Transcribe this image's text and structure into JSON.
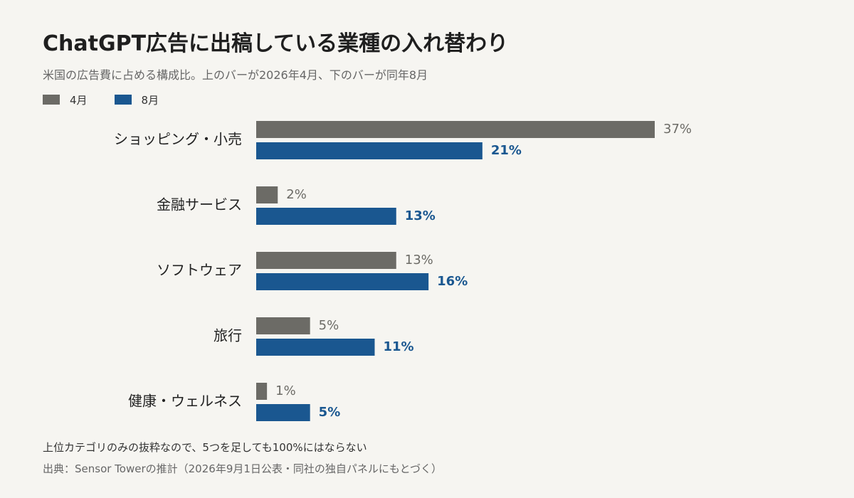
{
  "header": {
    "title": "ChatGPT広告に出稿している業種の入れ替わり",
    "subtitle": "米国の広告費に占める構成比。上のバーが2026年4月、下のバーが同年8月"
  },
  "legend": {
    "april_label": "4月",
    "august_label": "8月"
  },
  "colors": {
    "april": "#6c6b66",
    "august": "#1a5790",
    "april_label_text": "#6c6b66",
    "august_label_text": "#1a5790"
  },
  "chart_data": {
    "type": "bar",
    "orientation": "horizontal",
    "title": "ChatGPT広告に出稿している業種の入れ替わり",
    "subtitle": "米国の広告費に占める構成比。上のバーが2026年4月、下のバーが同年8月",
    "categories": [
      "ショッピング・小売",
      "金融サービス",
      "ソフトウェア",
      "旅行",
      "健康・ウェルネス"
    ],
    "series": [
      {
        "name": "4月",
        "values": [
          37,
          2,
          13,
          5,
          1
        ]
      },
      {
        "name": "8月",
        "values": [
          21,
          13,
          16,
          11,
          5
        ]
      }
    ],
    "value_labels": {
      "4月": [
        "37%",
        "2%",
        "13%",
        "5%",
        "1%"
      ],
      "8月": [
        "21%",
        "13%",
        "16%",
        "11%",
        "5%"
      ]
    },
    "unit": "%",
    "legend_position": "top-left",
    "grid": false,
    "xlim": [
      0,
      37
    ]
  },
  "footer": {
    "note": "上位カテゴリのみの抜粋なので、5つを足しても100%にはならない",
    "source": "出典：Sensor Towerの推計（2026年9月1日公表・同社の独自パネルにもとづく）"
  }
}
